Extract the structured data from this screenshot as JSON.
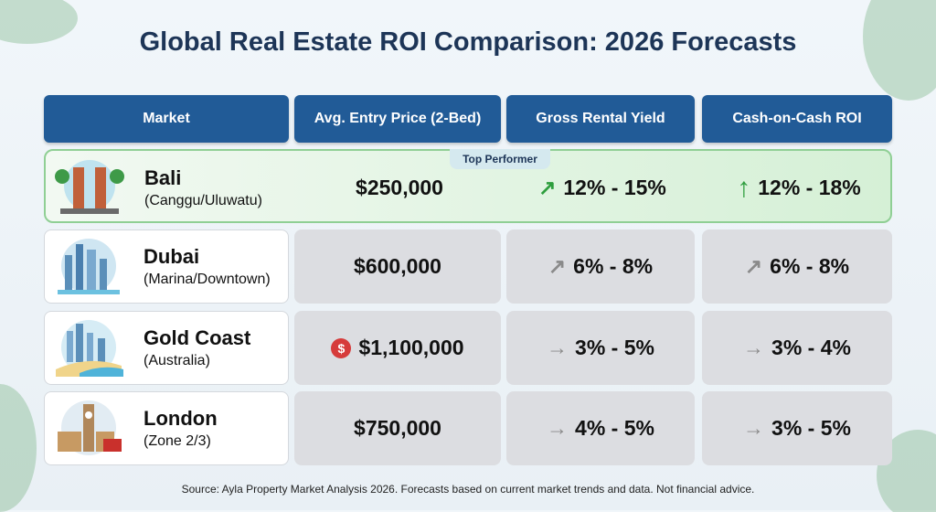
{
  "title": "Global Real Estate ROI Comparison: 2026 Forecasts",
  "headers": [
    "Market",
    "Avg. Entry Price (2-Bed)",
    "Gross Rental Yield",
    "Cash-on-Cash ROI"
  ],
  "badge": "Top Performer",
  "rows": [
    {
      "market": "Bali",
      "sub": "(Canggu/Uluwatu)",
      "price": "$250,000",
      "yield": "12% - 15%",
      "roi": "12% - 18%",
      "yield_icon": "arrow-up-right-icon",
      "roi_icon": "arrow-up-icon",
      "icon": "bali-temple-icon"
    },
    {
      "market": "Dubai",
      "sub": "(Marina/Downtown)",
      "price": "$600,000",
      "yield": "6% - 8%",
      "roi": "6% - 8%",
      "yield_icon": "arrow-up-right-icon",
      "roi_icon": "arrow-up-right-icon",
      "icon": "dubai-skyline-icon"
    },
    {
      "market": "Gold Coast",
      "sub": "(Australia)",
      "price": "$1,100,000",
      "price_icon": "dollar-icon",
      "yield": "3% - 5%",
      "roi": "3% - 4%",
      "yield_icon": "arrow-right-icon",
      "roi_icon": "arrow-right-icon",
      "icon": "gold-coast-beach-icon"
    },
    {
      "market": "London",
      "sub": "(Zone 2/3)",
      "price": "$750,000",
      "yield": "4% - 5%",
      "roi": "3% - 5%",
      "yield_icon": "arrow-right-icon",
      "roi_icon": "arrow-right-icon",
      "icon": "london-big-ben-icon"
    }
  ],
  "dollar_symbol": "$",
  "source": "Source: Ayla Property Market Analysis 2026. Forecasts based on current market trends and data. Not financial advice.",
  "colors": {
    "header": "#215b97",
    "title": "#1d3557",
    "top_performer_green": "#2e9e3e",
    "neutral_arrow": "#8a8a8a",
    "cell_bg": "#dcdde1"
  },
  "chart_data": {
    "type": "table",
    "columns": [
      "Market",
      "Avg. Entry Price (2-Bed)",
      "Gross Rental Yield",
      "Cash-on-Cash ROI"
    ],
    "rows": [
      [
        "Bali (Canggu/Uluwatu)",
        "$250,000",
        "12% - 15%",
        "12% - 18%"
      ],
      [
        "Dubai (Marina/Downtown)",
        "$600,000",
        "6% - 8%",
        "6% - 8%"
      ],
      [
        "Gold Coast (Australia)",
        "$1,100,000",
        "3% - 5%",
        "3% - 4%"
      ],
      [
        "London (Zone 2/3)",
        "$750,000",
        "4% - 5%",
        "3% - 5%"
      ]
    ]
  }
}
